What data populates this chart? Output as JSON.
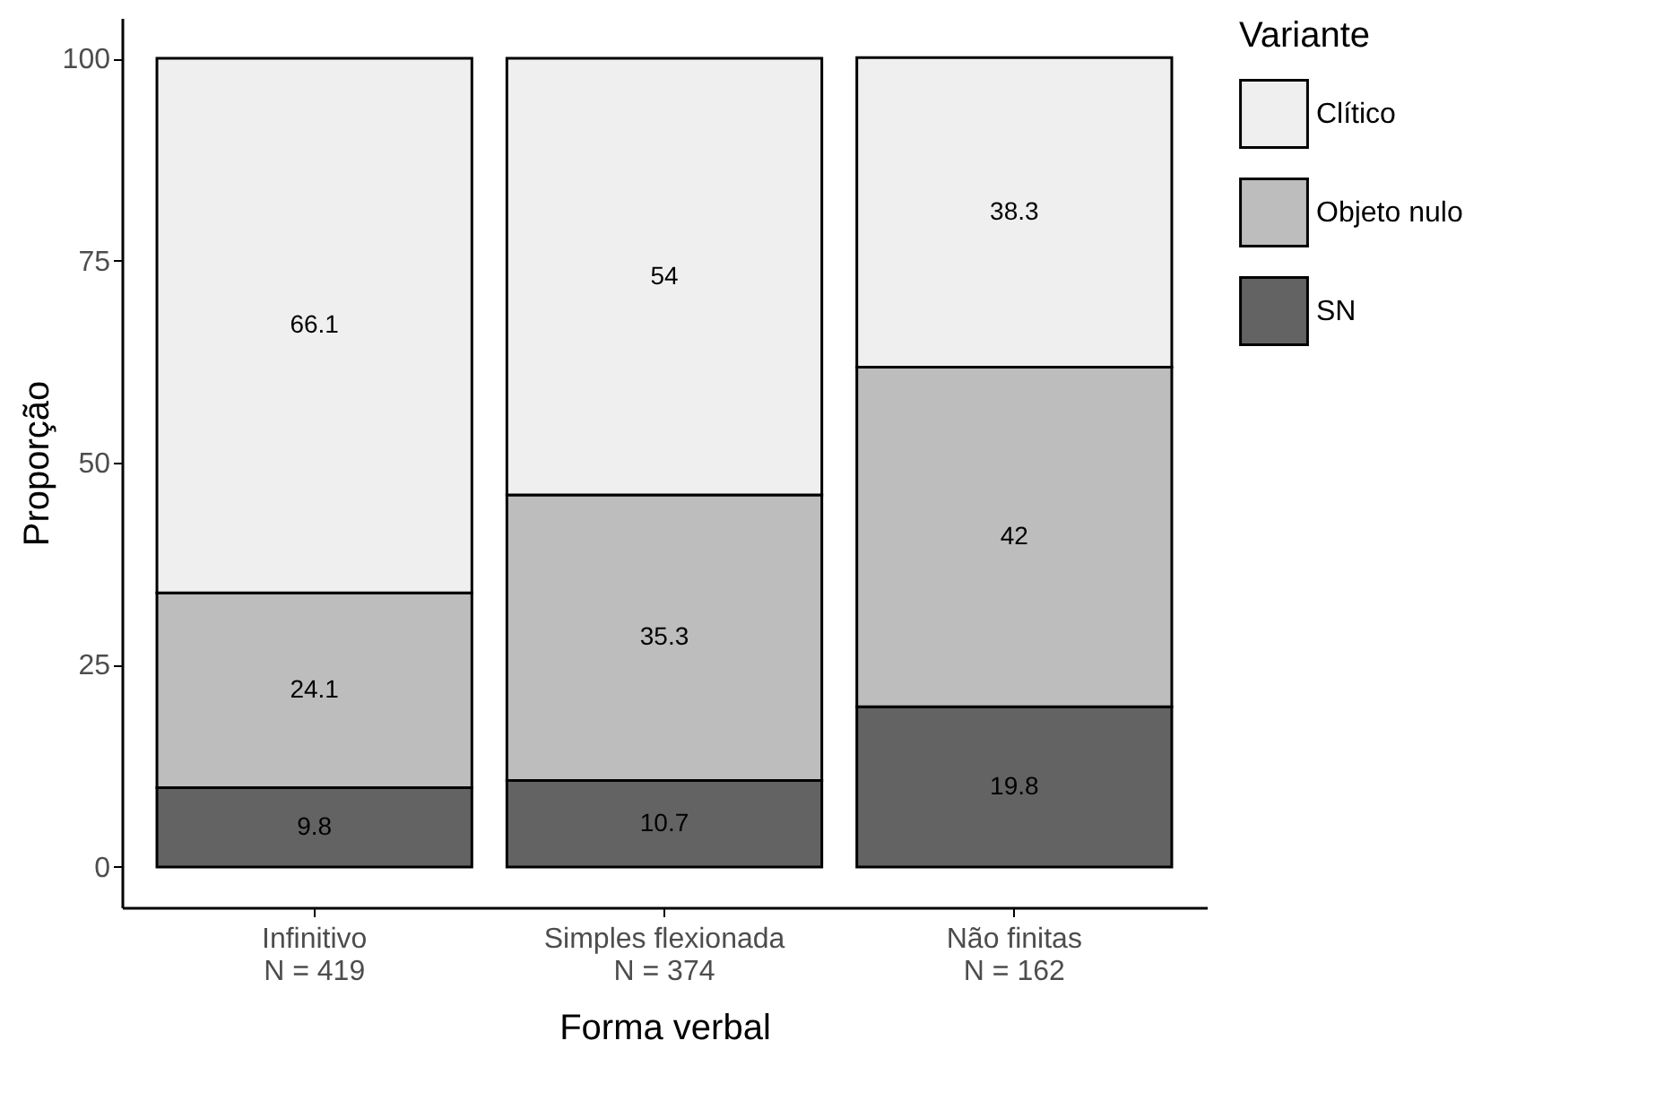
{
  "chart_data": {
    "type": "bar",
    "stacked": true,
    "xlabel": "Forma verbal",
    "ylabel": "Proporção",
    "legend_title": "Variante",
    "legend": "right",
    "categories": [
      "Infinitivo\nN = 419",
      "Simples flexionada\nN = 374",
      "Não finitas\nN = 162"
    ],
    "series": [
      {
        "name": "SN",
        "color": "#636363",
        "values": [
          9.8,
          10.7,
          19.8
        ]
      },
      {
        "name": "Objeto nulo",
        "color": "#bdbdbd",
        "values": [
          24.1,
          35.3,
          42
        ]
      },
      {
        "name": "Clítico",
        "color": "#efefef",
        "values": [
          66.1,
          54,
          38.3
        ]
      }
    ],
    "ylim": [
      -5,
      105
    ],
    "yticks": [
      0,
      25,
      50,
      75,
      100
    ],
    "data_labels": true
  }
}
